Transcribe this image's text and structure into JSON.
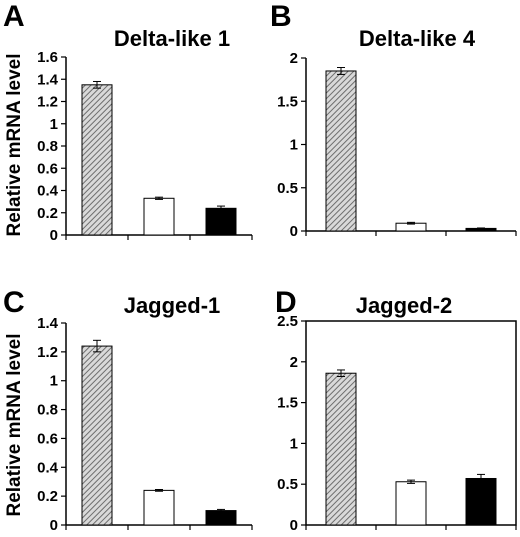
{
  "colors": {
    "hatched": "#7a7a7a",
    "open": "#ffffff",
    "filled": "#000000",
    "axis": "#000000"
  },
  "chart_data": [
    {
      "panel": "A",
      "type": "bar",
      "title": "Delta-like 1",
      "ylabel": "Relative mRNA level",
      "ylim": [
        0,
        1.6
      ],
      "yticks": [
        "0",
        "0.2",
        "0.4",
        "0.6",
        "0.8",
        "1",
        "1.2",
        "1.4",
        "1.6"
      ],
      "values": [
        1.35,
        0.33,
        0.24
      ],
      "errors": [
        0.03,
        0.01,
        0.02
      ],
      "bar_styles": [
        "hatched",
        "open",
        "filled"
      ],
      "grid": false
    },
    {
      "panel": "B",
      "type": "bar",
      "title": "Delta-like 4",
      "ylabel": "",
      "ylim": [
        0,
        2
      ],
      "yticks": [
        "0",
        "0.5",
        "1",
        "1.5",
        "2"
      ],
      "values": [
        1.85,
        0.09,
        0.03
      ],
      "errors": [
        0.04,
        0.01,
        0.005
      ],
      "bar_styles": [
        "hatched",
        "open",
        "filled"
      ],
      "grid": false
    },
    {
      "panel": "C",
      "type": "bar",
      "title": "Jagged-1",
      "ylabel": "Relative mRNA level",
      "ylim": [
        0,
        1.4
      ],
      "yticks": [
        "0",
        "0.2",
        "0.4",
        "0.6",
        "0.8",
        "1",
        "1.2",
        "1.4"
      ],
      "values": [
        1.24,
        0.24,
        0.1
      ],
      "errors": [
        0.04,
        0.006,
        0.008
      ],
      "bar_styles": [
        "hatched",
        "open",
        "filled"
      ],
      "grid": false
    },
    {
      "panel": "D",
      "type": "bar",
      "title": "Jagged-2",
      "ylabel": "",
      "ylim": [
        0,
        2.5
      ],
      "yticks": [
        "0",
        "0.5",
        "1",
        "1.5",
        "2",
        "2.5"
      ],
      "values": [
        1.86,
        0.53,
        0.57
      ],
      "errors": [
        0.04,
        0.02,
        0.05
      ],
      "bar_styles": [
        "hatched",
        "open",
        "filled"
      ],
      "grid": false
    }
  ]
}
